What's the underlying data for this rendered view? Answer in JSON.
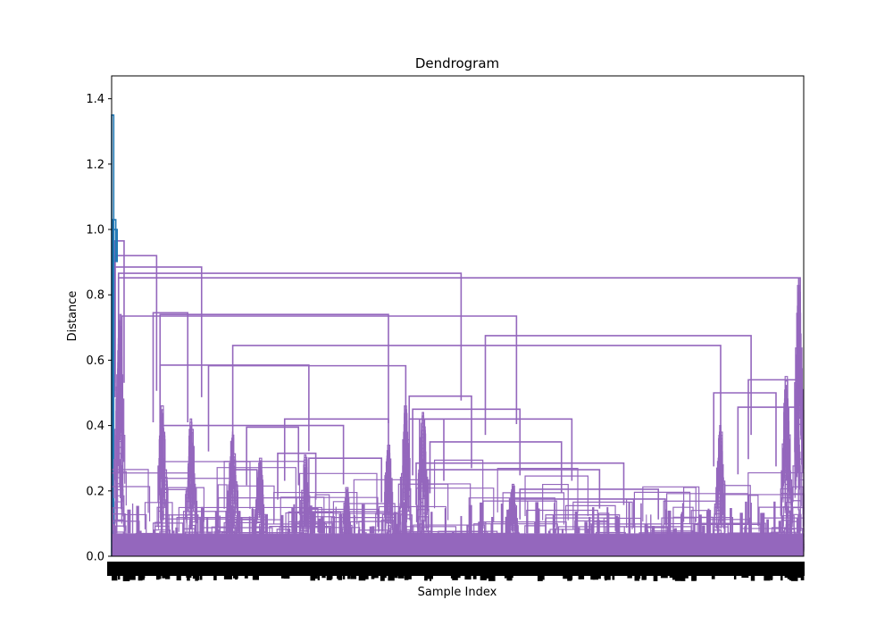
{
  "chart_data": {
    "type": "dendrogram",
    "title": "Dendrogram",
    "xlabel": "Sample Index",
    "ylabel": "Distance",
    "ylim": [
      0,
      1.47
    ],
    "yticks": [
      0.0,
      0.2,
      0.4,
      0.6,
      0.8,
      1.0,
      1.2,
      1.4
    ],
    "ytick_labels": [
      "0.0",
      "0.2",
      "0.4",
      "0.6",
      "0.8",
      "1.0",
      "1.2",
      "1.4"
    ],
    "grid": false,
    "legend": "none",
    "colors": {
      "cluster": "#9467bd",
      "above_threshold": "#1f77b4",
      "axis": "#000000"
    },
    "prominent_merges": [
      {
        "left": 0.01,
        "right": 0.995,
        "height": 0.852
      },
      {
        "left": 0.01,
        "right": 0.505,
        "height": 0.866
      },
      {
        "left": 0.005,
        "right": 0.13,
        "height": 0.885
      },
      {
        "left": 0.005,
        "right": 0.065,
        "height": 0.92
      },
      {
        "left": 0.005,
        "right": 0.018,
        "height": 0.965
      },
      {
        "left": 0.015,
        "right": 0.585,
        "height": 0.735
      },
      {
        "left": 0.06,
        "right": 0.11,
        "height": 0.745
      },
      {
        "left": 0.07,
        "right": 0.4,
        "height": 0.74
      },
      {
        "left": 0.175,
        "right": 0.88,
        "height": 0.645
      },
      {
        "left": 0.54,
        "right": 0.924,
        "height": 0.675
      },
      {
        "left": 0.07,
        "right": 0.285,
        "height": 0.585
      },
      {
        "left": 0.14,
        "right": 0.425,
        "height": 0.583
      },
      {
        "left": 0.92,
        "right": 0.99,
        "height": 0.54
      },
      {
        "left": 0.905,
        "right": 0.993,
        "height": 0.456
      },
      {
        "left": 0.07,
        "right": 0.335,
        "height": 0.4
      },
      {
        "left": 0.25,
        "right": 0.4,
        "height": 0.42
      },
      {
        "left": 0.43,
        "right": 0.665,
        "height": 0.42
      },
      {
        "left": 0.435,
        "right": 0.59,
        "height": 0.45
      },
      {
        "left": 0.46,
        "right": 0.65,
        "height": 0.35
      },
      {
        "left": 0.43,
        "right": 0.52,
        "height": 0.49
      },
      {
        "left": 0.445,
        "right": 0.48,
        "height": 0.42
      },
      {
        "left": 0.195,
        "right": 0.27,
        "height": 0.395
      },
      {
        "left": 0.87,
        "right": 0.96,
        "height": 0.5
      },
      {
        "left": 0.24,
        "right": 0.295,
        "height": 0.315
      },
      {
        "left": 0.44,
        "right": 0.74,
        "height": 0.285
      },
      {
        "left": 0.455,
        "right": 0.705,
        "height": 0.265
      },
      {
        "left": 0.285,
        "right": 0.39,
        "height": 0.3
      },
      {
        "left": 0.175,
        "right": 0.21,
        "height": 0.265
      },
      {
        "left": 0.575,
        "right": 0.8,
        "height": 0.175
      },
      {
        "left": 0.59,
        "right": 0.79,
        "height": 0.205
      }
    ]
  }
}
